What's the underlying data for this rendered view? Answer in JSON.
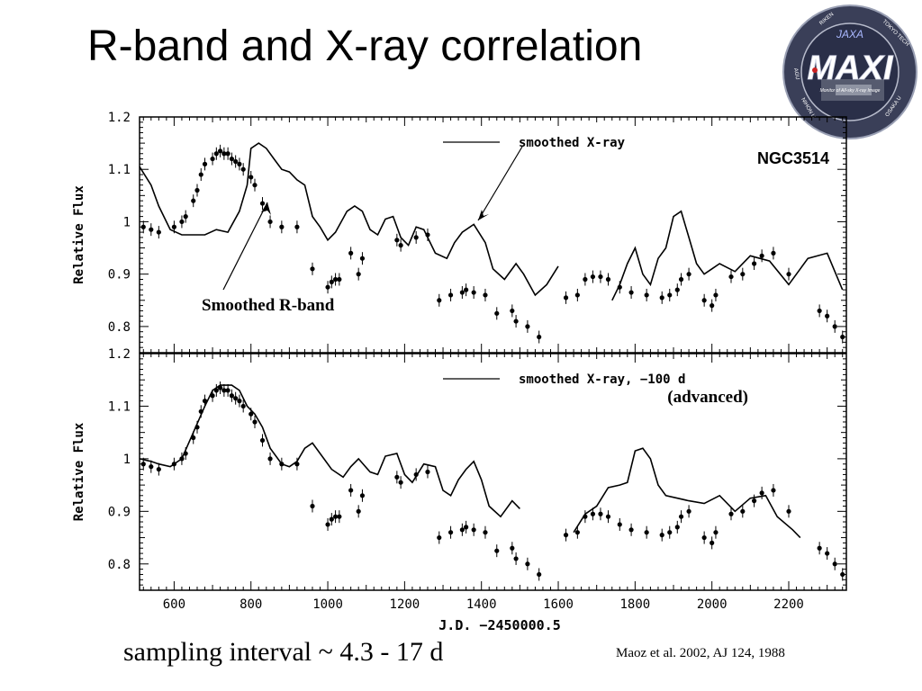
{
  "slide": {
    "title": "R-band and X-ray correlation",
    "footer_left": "sampling interval ~ 4.3 - 17 d",
    "footer_right": "Maoz et al. 2002, AJ 124, 1988"
  },
  "logo": {
    "text_main": "MAXI",
    "text_jaxa": "JAXA",
    "text_small": "Monitor of All-sky X-ray Image",
    "ring_labels": [
      "RIKEN",
      "TOKYO TECH",
      "OSAKA U",
      "NIHON U",
      "AGU"
    ],
    "colors": {
      "ring": "#3a3f58",
      "text": "#ffffff",
      "accent": "#cc2222"
    }
  },
  "chart_data": [
    {
      "type": "scatter",
      "panel": "top",
      "ylabel": "Relative Flux",
      "ylim": [
        0.75,
        1.2
      ],
      "xlim": [
        510,
        2350
      ],
      "yticks": [
        0.8,
        0.9,
        1,
        1.1,
        1.2
      ],
      "ytick_labels": [
        "0.8",
        "0.9",
        "1",
        "1.1",
        "1.2"
      ],
      "legend": "smoothed X-ray",
      "label_object": "NGC3514",
      "annotation": "Smoothed R-band",
      "series": [
        {
          "name": "smoothed X-ray",
          "kind": "line",
          "x": [
            510,
            540,
            560,
            590,
            620,
            650,
            680,
            710,
            740,
            770,
            790,
            800,
            820,
            840,
            860,
            880,
            900,
            920,
            940,
            960,
            980,
            1000,
            1020,
            1050,
            1070,
            1090,
            1110,
            1130,
            1150,
            1170,
            1190,
            1210,
            1230,
            1250,
            1280,
            1310,
            1330,
            1350,
            1380,
            1410,
            1430,
            1460,
            1490,
            1510,
            1540,
            1570,
            1600
          ],
          "y": [
            1.105,
            1.07,
            1.03,
            0.985,
            0.975,
            0.975,
            0.975,
            0.985,
            0.98,
            1.02,
            1.07,
            1.14,
            1.15,
            1.14,
            1.12,
            1.1,
            1.095,
            1.08,
            1.07,
            1.01,
            0.99,
            0.965,
            0.98,
            1.02,
            1.03,
            1.02,
            0.985,
            0.975,
            1.005,
            1.01,
            0.97,
            0.955,
            0.99,
            0.985,
            0.94,
            0.93,
            0.96,
            0.98,
            0.995,
            0.96,
            0.91,
            0.89,
            0.92,
            0.9,
            0.86,
            0.88,
            0.915
          ]
        },
        {
          "name": "smoothed X-ray",
          "kind": "line",
          "x": [
            1740,
            1760,
            1780,
            1800,
            1820,
            1840,
            1860,
            1880,
            1900,
            1920,
            1940,
            1960,
            1980,
            2000,
            2020,
            2060,
            2100,
            2150,
            2200,
            2250,
            2300,
            2340
          ],
          "y": [
            0.85,
            0.88,
            0.92,
            0.95,
            0.9,
            0.88,
            0.93,
            0.95,
            1.01,
            1.02,
            0.97,
            0.92,
            0.9,
            0.91,
            0.92,
            0.905,
            0.935,
            0.925,
            0.88,
            0.93,
            0.94,
            0.87
          ]
        },
        {
          "name": "R-band",
          "kind": "points",
          "x": [
            520,
            540,
            560,
            600,
            620,
            630,
            650,
            660,
            670,
            680,
            700,
            710,
            720,
            730,
            740,
            750,
            760,
            770,
            780,
            800,
            810,
            830,
            850,
            880,
            920,
            960,
            1000,
            1010,
            1020,
            1030,
            1060,
            1080,
            1090,
            1180,
            1190,
            1230,
            1260,
            1290,
            1320,
            1350,
            1360,
            1380,
            1410,
            1440,
            1480,
            1490,
            1520,
            1550,
            1620,
            1650,
            1670,
            1690,
            1710,
            1730,
            1760,
            1790,
            1830,
            1870,
            1890,
            1910,
            1920,
            1940,
            1980,
            2000,
            2010,
            2050,
            2080,
            2110,
            2130,
            2160,
            2200,
            2280,
            2300,
            2320,
            2340
          ],
          "y": [
            0.99,
            0.985,
            0.98,
            0.99,
            1.0,
            1.01,
            1.04,
            1.06,
            1.09,
            1.11,
            1.12,
            1.13,
            1.135,
            1.13,
            1.13,
            1.12,
            1.115,
            1.11,
            1.1,
            1.085,
            1.07,
            1.035,
            1.0,
            0.99,
            0.99,
            0.91,
            0.875,
            0.885,
            0.89,
            0.89,
            0.94,
            0.9,
            0.93,
            0.965,
            0.955,
            0.97,
            0.975,
            0.85,
            0.86,
            0.865,
            0.87,
            0.865,
            0.86,
            0.825,
            0.83,
            0.81,
            0.8,
            0.78,
            0.855,
            0.86,
            0.89,
            0.895,
            0.895,
            0.89,
            0.875,
            0.865,
            0.86,
            0.855,
            0.86,
            0.87,
            0.89,
            0.9,
            0.85,
            0.84,
            0.86,
            0.895,
            0.9,
            0.92,
            0.935,
            0.94,
            0.9,
            0.83,
            0.82,
            0.8,
            0.78
          ]
        }
      ]
    },
    {
      "type": "scatter",
      "panel": "bottom",
      "ylabel": "Relative Flux",
      "xlabel": "J.D. −2450000.5",
      "ylim": [
        0.75,
        1.2
      ],
      "xlim": [
        510,
        2350
      ],
      "xticks": [
        600,
        800,
        1000,
        1200,
        1400,
        1600,
        1800,
        2000,
        2200
      ],
      "xtick_labels": [
        "600",
        "800",
        "1000",
        "1200",
        "1400",
        "1600",
        "1800",
        "2000",
        "2200"
      ],
      "yticks": [
        0.8,
        0.9,
        1,
        1.1,
        1.2
      ],
      "ytick_labels": [
        "0.8",
        "0.9",
        "1",
        "1.1",
        "1.2"
      ],
      "legend": "smoothed X-ray, −100 d",
      "annotation": "(advanced)",
      "series": [
        {
          "name": "smoothed X-ray, −100 d",
          "kind": "line",
          "x": [
            510,
            540,
            560,
            590,
            620,
            650,
            680,
            700,
            720,
            750,
            770,
            790,
            810,
            830,
            850,
            880,
            900,
            920,
            940,
            960,
            990,
            1010,
            1040,
            1060,
            1080,
            1110,
            1130,
            1150,
            1180,
            1200,
            1220,
            1250,
            1280,
            1300,
            1320,
            1340,
            1360,
            1380,
            1400,
            1420,
            1450,
            1480,
            1500
          ],
          "y": [
            1.0,
            0.995,
            0.99,
            0.985,
            1.0,
            1.05,
            1.1,
            1.13,
            1.14,
            1.14,
            1.13,
            1.1,
            1.085,
            1.06,
            1.02,
            0.99,
            0.985,
            0.995,
            1.02,
            1.03,
            1.0,
            0.98,
            0.965,
            0.985,
            1.0,
            0.975,
            0.97,
            1.005,
            1.01,
            0.97,
            0.955,
            0.99,
            0.985,
            0.94,
            0.93,
            0.96,
            0.98,
            0.995,
            0.96,
            0.91,
            0.89,
            0.92,
            0.905
          ]
        },
        {
          "name": "smoothed X-ray, −100 d",
          "kind": "line",
          "x": [
            1640,
            1670,
            1700,
            1730,
            1760,
            1780,
            1800,
            1820,
            1840,
            1860,
            1880,
            1910,
            1940,
            1980,
            2020,
            2060,
            2100,
            2140,
            2170,
            2210,
            2230
          ],
          "y": [
            0.86,
            0.895,
            0.91,
            0.945,
            0.95,
            0.955,
            1.015,
            1.02,
            1.0,
            0.95,
            0.93,
            0.925,
            0.92,
            0.915,
            0.93,
            0.9,
            0.925,
            0.93,
            0.89,
            0.865,
            0.85
          ]
        },
        {
          "name": "R-band",
          "kind": "points",
          "x": [
            520,
            540,
            560,
            600,
            620,
            630,
            650,
            660,
            670,
            680,
            700,
            710,
            720,
            730,
            740,
            750,
            760,
            770,
            780,
            800,
            810,
            830,
            850,
            880,
            920,
            960,
            1000,
            1010,
            1020,
            1030,
            1060,
            1080,
            1090,
            1180,
            1190,
            1230,
            1260,
            1290,
            1320,
            1350,
            1360,
            1380,
            1410,
            1440,
            1480,
            1490,
            1520,
            1550,
            1620,
            1650,
            1670,
            1690,
            1710,
            1730,
            1760,
            1790,
            1830,
            1870,
            1890,
            1910,
            1920,
            1940,
            1980,
            2000,
            2010,
            2050,
            2080,
            2110,
            2130,
            2160,
            2200,
            2280,
            2300,
            2320,
            2340
          ],
          "y": [
            0.99,
            0.985,
            0.98,
            0.99,
            1.0,
            1.01,
            1.04,
            1.06,
            1.09,
            1.11,
            1.12,
            1.13,
            1.135,
            1.13,
            1.13,
            1.12,
            1.115,
            1.11,
            1.1,
            1.085,
            1.07,
            1.035,
            1.0,
            0.99,
            0.99,
            0.91,
            0.875,
            0.885,
            0.89,
            0.89,
            0.94,
            0.9,
            0.93,
            0.965,
            0.955,
            0.97,
            0.975,
            0.85,
            0.86,
            0.865,
            0.87,
            0.865,
            0.86,
            0.825,
            0.83,
            0.81,
            0.8,
            0.78,
            0.855,
            0.86,
            0.89,
            0.895,
            0.895,
            0.89,
            0.875,
            0.865,
            0.86,
            0.855,
            0.86,
            0.87,
            0.89,
            0.9,
            0.85,
            0.84,
            0.86,
            0.895,
            0.9,
            0.92,
            0.935,
            0.94,
            0.9,
            0.83,
            0.82,
            0.8,
            0.78
          ]
        }
      ]
    }
  ]
}
